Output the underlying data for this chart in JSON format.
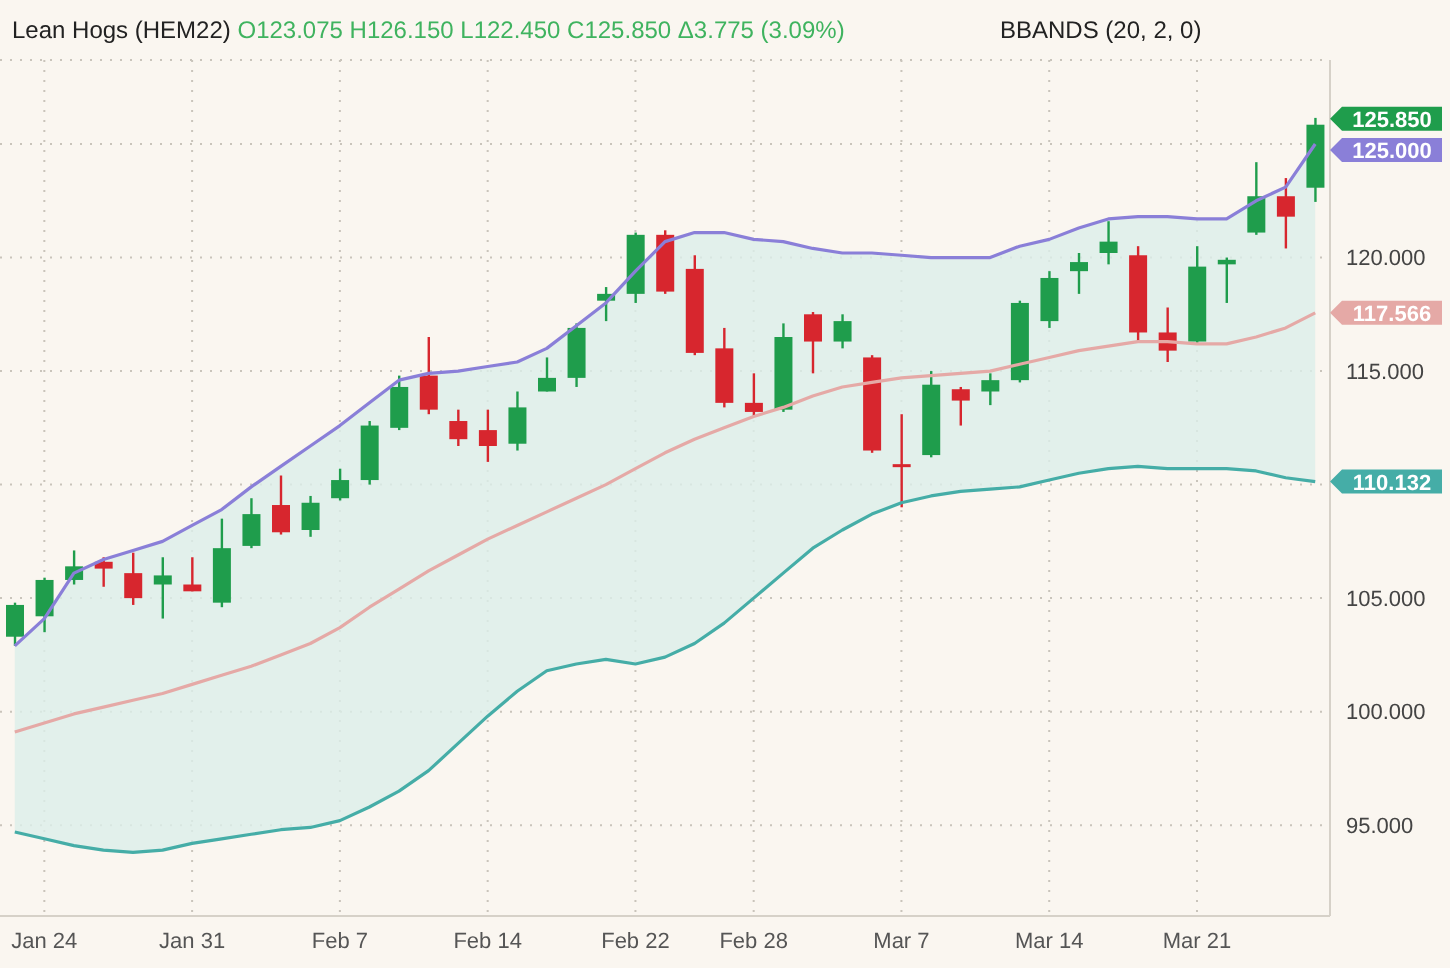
{
  "chart_data": {
    "type": "candlestick",
    "title": "Lean Hogs (HEM22)",
    "subtitle": "O123.075 H126.150 L122.450 C125.850 Δ3.775 (3.09%)",
    "annotations": [
      "BBANDS (20, 2, 0)",
      "125.850"
    ],
    "categories": [
      null,
      "Jan 24",
      null,
      null,
      null,
      null,
      "Jan 31",
      null,
      null,
      null,
      null,
      "Feb 7",
      null,
      null,
      null,
      null,
      "Feb 14",
      null,
      null,
      null,
      null,
      "Feb 22",
      null,
      null,
      null,
      "Feb 28",
      null,
      null,
      null,
      null,
      "Mar 7",
      null,
      null,
      null,
      null,
      "Mar 14",
      null,
      null,
      null,
      null,
      "Mar 21",
      null,
      null,
      null,
      null
    ],
    "ohlc": [
      [
        103.3,
        104.8,
        102.9,
        104.7
      ],
      [
        104.2,
        105.9,
        103.5,
        105.8
      ],
      [
        105.8,
        107.1,
        105.6,
        106.4
      ],
      [
        106.6,
        106.8,
        105.5,
        106.3
      ],
      [
        106.1,
        107.0,
        104.7,
        105.0
      ],
      [
        105.6,
        106.8,
        104.1,
        106.0
      ],
      [
        105.6,
        106.8,
        105.3,
        105.3
      ],
      [
        104.8,
        108.5,
        104.6,
        107.2
      ],
      [
        107.3,
        109.4,
        107.2,
        108.7
      ],
      [
        109.1,
        110.4,
        107.8,
        107.9
      ],
      [
        108.0,
        109.5,
        107.7,
        109.2
      ],
      [
        109.4,
        110.7,
        109.3,
        110.2
      ],
      [
        110.2,
        112.8,
        110.0,
        112.6
      ],
      [
        112.5,
        114.8,
        112.4,
        114.3
      ],
      [
        114.8,
        116.5,
        113.1,
        113.3
      ],
      [
        112.8,
        113.3,
        111.7,
        112.0
      ],
      [
        112.4,
        113.3,
        111.0,
        111.7
      ],
      [
        111.8,
        114.1,
        111.5,
        113.4
      ],
      [
        114.1,
        115.6,
        114.1,
        114.7
      ],
      [
        114.7,
        117.1,
        114.3,
        116.9
      ],
      [
        118.1,
        118.7,
        117.2,
        118.4
      ],
      [
        118.4,
        121.1,
        118.0,
        121.0
      ],
      [
        121.0,
        121.2,
        118.4,
        118.5
      ],
      [
        119.5,
        120.1,
        115.7,
        115.8
      ],
      [
        116.0,
        116.9,
        113.4,
        113.6
      ],
      [
        113.6,
        114.9,
        113.0,
        113.2
      ],
      [
        113.3,
        117.1,
        113.2,
        116.5
      ],
      [
        117.5,
        117.6,
        114.9,
        116.3
      ],
      [
        116.3,
        117.5,
        116.0,
        117.2
      ],
      [
        115.6,
        115.7,
        111.4,
        111.5
      ],
      [
        110.9,
        113.1,
        109.0,
        110.8
      ],
      [
        111.3,
        115.0,
        111.2,
        114.4
      ],
      [
        114.2,
        114.3,
        112.6,
        113.7
      ],
      [
        114.1,
        114.9,
        113.5,
        114.6
      ],
      [
        114.6,
        118.1,
        114.5,
        118.0
      ],
      [
        117.2,
        119.4,
        116.9,
        119.1
      ],
      [
        119.4,
        120.2,
        118.4,
        119.8
      ],
      [
        120.2,
        121.6,
        119.7,
        120.7
      ],
      [
        120.1,
        120.5,
        116.3,
        116.7
      ],
      [
        116.7,
        117.8,
        115.4,
        115.9
      ],
      [
        116.3,
        120.5,
        116.2,
        119.6
      ],
      [
        119.7,
        120.0,
        118.0,
        119.9
      ],
      [
        121.1,
        124.2,
        121.0,
        122.7
      ],
      [
        122.7,
        123.5,
        120.4,
        121.8
      ],
      [
        123.075,
        126.15,
        122.45,
        125.85
      ]
    ],
    "colors": [
      "#1f9d4c",
      "#1f9d4c",
      "#1f9d4c",
      "#d7262e",
      "#d7262e",
      "#1f9d4c",
      "#d7262e",
      "#1f9d4c",
      "#1f9d4c",
      "#d7262e",
      "#1f9d4c",
      "#1f9d4c",
      "#1f9d4c",
      "#1f9d4c",
      "#d7262e",
      "#d7262e",
      "#d7262e",
      "#1f9d4c",
      "#1f9d4c",
      "#1f9d4c",
      "#1f9d4c",
      "#1f9d4c",
      "#d7262e",
      "#d7262e",
      "#d7262e",
      "#d7262e",
      "#1f9d4c",
      "#d7262e",
      "#1f9d4c",
      "#d7262e",
      "#d7262e",
      "#1f9d4c",
      "#d7262e",
      "#1f9d4c",
      "#1f9d4c",
      "#1f9d4c",
      "#1f9d4c",
      "#1f9d4c",
      "#d7262e",
      "#d7262e",
      "#1f9d4c",
      "#1f9d4c",
      "#1f9d4c",
      "#d7262e",
      "#1f9d4c"
    ],
    "series": [
      {
        "type": "line",
        "color": "#8a7fd8",
        "values": [
          102.9,
          104.1,
          106.1,
          106.7,
          107.1,
          107.5,
          108.2,
          108.9,
          109.9,
          110.8,
          111.7,
          112.6,
          113.6,
          114.6,
          114.9,
          115.0,
          115.2,
          115.4,
          116.0,
          117.0,
          118.0,
          119.4,
          120.7,
          121.1,
          121.1,
          120.8,
          120.7,
          120.4,
          120.2,
          120.2,
          120.1,
          120.0,
          120.0,
          120.0,
          120.5,
          120.8,
          121.3,
          121.7,
          121.8,
          121.8,
          121.7,
          121.7,
          122.5,
          123.1,
          125.0
        ],
        "value_labels": [
          null,
          null,
          null,
          null,
          null,
          null,
          null,
          null,
          null,
          null,
          null,
          null,
          null,
          null,
          null,
          null,
          null,
          null,
          null,
          null,
          null,
          null,
          null,
          null,
          null,
          null,
          null,
          null,
          null,
          null,
          null,
          null,
          null,
          null,
          null,
          null,
          null,
          null,
          null,
          null,
          null,
          null,
          null,
          null,
          "125.000"
        ]
      },
      {
        "type": "line",
        "color": "#e5a9a6",
        "values": [
          99.1,
          99.5,
          99.9,
          100.2,
          100.5,
          100.8,
          101.2,
          101.6,
          102.0,
          102.5,
          103.0,
          103.7,
          104.6,
          105.4,
          106.2,
          106.9,
          107.6,
          108.2,
          108.8,
          109.4,
          110.0,
          110.7,
          111.4,
          112.0,
          112.5,
          113.0,
          113.4,
          113.9,
          114.3,
          114.5,
          114.7,
          114.8,
          114.9,
          115.0,
          115.3,
          115.6,
          115.9,
          116.1,
          116.3,
          116.3,
          116.2,
          116.2,
          116.5,
          116.9,
          117.566
        ],
        "value_labels": [
          null,
          null,
          null,
          null,
          null,
          null,
          null,
          null,
          null,
          null,
          null,
          null,
          null,
          null,
          null,
          null,
          null,
          null,
          null,
          null,
          null,
          null,
          null,
          null,
          null,
          null,
          null,
          null,
          null,
          null,
          null,
          null,
          null,
          null,
          null,
          null,
          null,
          null,
          null,
          null,
          null,
          null,
          null,
          null,
          "117.566"
        ],
        "lower": [
          94.7,
          94.4,
          94.1,
          93.9,
          93.8,
          93.9,
          94.2,
          94.4,
          94.6,
          94.8,
          94.9,
          95.2,
          95.8,
          96.5,
          97.4,
          98.6,
          99.8,
          100.9,
          101.8,
          102.1,
          102.3,
          102.1,
          102.4,
          103.0,
          103.9,
          105.0,
          106.1,
          107.2,
          108.0,
          108.7,
          109.2,
          109.5,
          109.7,
          109.8,
          109.9,
          110.2,
          110.5,
          110.7,
          110.8,
          110.7,
          110.7,
          110.7,
          110.6,
          110.3,
          110.132
        ],
        "upper": [
          102.9,
          104.1,
          106.1,
          106.7,
          107.1,
          107.5,
          108.2,
          108.9,
          109.9,
          110.8,
          111.7,
          112.6,
          113.6,
          114.6,
          114.9,
          115.0,
          115.2,
          115.4,
          116.0,
          117.0,
          118.0,
          119.4,
          120.7,
          121.1,
          121.1,
          120.8,
          120.7,
          120.4,
          120.2,
          120.2,
          120.1,
          120.0,
          120.0,
          120.0,
          120.5,
          120.8,
          121.3,
          121.7,
          121.8,
          121.8,
          121.7,
          121.7,
          122.5,
          123.1,
          125.0
        ]
      },
      {
        "type": "line",
        "color": "#45ada7",
        "values": [
          94.7,
          94.4,
          94.1,
          93.9,
          93.8,
          93.9,
          94.2,
          94.4,
          94.6,
          94.8,
          94.9,
          95.2,
          95.8,
          96.5,
          97.4,
          98.6,
          99.8,
          100.9,
          101.8,
          102.1,
          102.3,
          102.1,
          102.4,
          103.0,
          103.9,
          105.0,
          106.1,
          107.2,
          108.0,
          108.7,
          109.2,
          109.5,
          109.7,
          109.8,
          109.9,
          110.2,
          110.5,
          110.7,
          110.8,
          110.7,
          110.7,
          110.7,
          110.6,
          110.3,
          110.132
        ],
        "value_labels": [
          null,
          null,
          null,
          null,
          null,
          null,
          null,
          null,
          null,
          null,
          null,
          null,
          null,
          null,
          null,
          null,
          null,
          null,
          null,
          null,
          null,
          null,
          null,
          null,
          null,
          null,
          null,
          null,
          null,
          null,
          null,
          null,
          null,
          null,
          null,
          null,
          null,
          null,
          null,
          null,
          null,
          null,
          null,
          null,
          "110.132"
        ]
      }
    ],
    "ylim": [
      91,
      128.7
    ],
    "yticks": [
      {
        "value": 95,
        "label": "95.000"
      },
      {
        "value": 100,
        "label": "100.000"
      },
      {
        "value": 105,
        "label": "105.000"
      },
      {
        "value": 110,
        "label": null
      },
      {
        "value": 115,
        "label": "115.000"
      },
      {
        "value": 120,
        "label": "120.000"
      },
      {
        "value": 125,
        "label": null
      }
    ],
    "grid": true
  }
}
